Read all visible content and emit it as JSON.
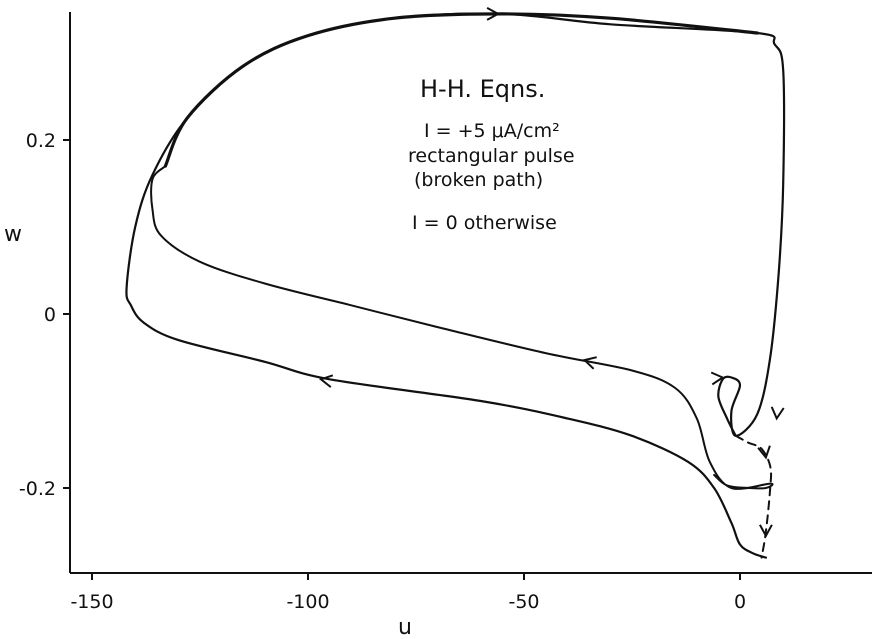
{
  "chart_data": {
    "type": "line",
    "title": "",
    "xlabel": "u",
    "ylabel": "w",
    "xlim": [
      -150,
      30
    ],
    "ylim": [
      -0.3,
      0.36
    ],
    "xticks": [
      -150,
      -100,
      -50,
      0
    ],
    "xtick_labels": [
      "-150",
      "-100",
      "-50",
      "0"
    ],
    "yticks": [
      -0.2,
      0,
      0.2
    ],
    "ytick_labels": [
      "-0.2",
      "0",
      "0.2"
    ],
    "grid": false,
    "annotations": {
      "title": "H-H. Eqns.",
      "line1": "I = +5 μA/cm²",
      "line2": "rectangular pulse",
      "line3": "(broken path)",
      "line4": "I = 0 otherwise"
    },
    "series": [
      {
        "style": "solid",
        "points": [
          [
            -1,
            -0.14
          ],
          [
            -3,
            -0.12
          ],
          [
            -5,
            -0.095
          ],
          [
            -4,
            -0.075
          ],
          [
            -2,
            -0.073
          ],
          [
            0,
            -0.082
          ],
          [
            -2,
            -0.112
          ],
          [
            -1,
            -0.14
          ],
          [
            4,
            -0.115
          ],
          [
            7,
            -0.05
          ],
          [
            9,
            0.05
          ],
          [
            10,
            0.15
          ],
          [
            10,
            0.28
          ],
          [
            8,
            0.31
          ],
          [
            4,
            0.323
          ],
          [
            -30,
            0.333
          ],
          [
            -55,
            0.345
          ],
          [
            -80,
            0.34
          ],
          [
            -100,
            0.32
          ],
          [
            -115,
            0.285
          ],
          [
            -128,
            0.225
          ],
          [
            -136,
            0.16
          ],
          [
            -140,
            0.1
          ],
          [
            -142,
            0.03
          ],
          [
            -141,
            0.01
          ],
          [
            -138,
            -0.01
          ],
          [
            -130,
            -0.03
          ],
          [
            -110,
            -0.055
          ],
          [
            -95,
            -0.075
          ],
          [
            -60,
            -0.1
          ],
          [
            -40,
            -0.12
          ],
          [
            -25,
            -0.14
          ],
          [
            -12,
            -0.17
          ],
          [
            -6,
            -0.2
          ],
          [
            -2,
            -0.24
          ],
          [
            0,
            -0.265
          ],
          [
            3,
            -0.275
          ],
          [
            6,
            -0.28
          ]
        ]
      },
      {
        "style": "solid",
        "points": [
          [
            -6,
            -0.185
          ],
          [
            -3,
            -0.197
          ],
          [
            2,
            -0.2
          ],
          [
            6,
            -0.2
          ],
          [
            7,
            -0.195
          ],
          [
            -2,
            -0.2
          ],
          [
            -7,
            -0.17
          ],
          [
            -10,
            -0.12
          ],
          [
            -15,
            -0.085
          ],
          [
            -25,
            -0.065
          ],
          [
            -45,
            -0.045
          ],
          [
            -70,
            -0.015
          ],
          [
            -90,
            0.01
          ],
          [
            -110,
            0.035
          ],
          [
            -125,
            0.06
          ],
          [
            -134,
            0.09
          ],
          [
            -136,
            0.12
          ],
          [
            -136,
            0.155
          ],
          [
            -133,
            0.17
          ]
        ]
      },
      {
        "style": "dashed",
        "points": [
          [
            -1,
            -0.14
          ],
          [
            2,
            -0.148
          ],
          [
            5,
            -0.155
          ],
          [
            7,
            -0.175
          ],
          [
            7,
            -0.2
          ],
          [
            6,
            -0.25
          ],
          [
            5,
            -0.28
          ]
        ]
      }
    ]
  }
}
